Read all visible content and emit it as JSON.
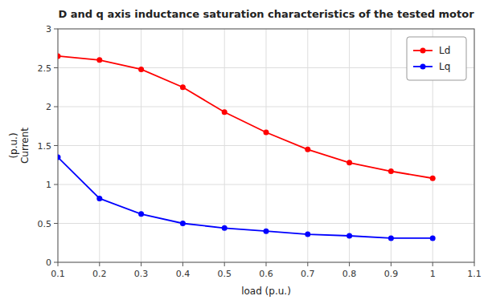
{
  "chart_data": {
    "type": "line",
    "title": "D and q axis inductance saturation characteristics of the tested motor",
    "xlabel": "load  (p.u.)",
    "ylabel": "(p.u.)\nCurrent",
    "x": [
      0.1,
      0.2,
      0.3,
      0.4,
      0.5,
      0.6,
      0.7,
      0.8,
      0.9,
      1.0
    ],
    "series": [
      {
        "name": "Ld",
        "color": "#ff0000",
        "marker": "circle",
        "values": [
          2.65,
          2.6,
          2.48,
          2.25,
          1.93,
          1.67,
          1.45,
          1.28,
          1.17,
          1.08
        ]
      },
      {
        "name": "Lq",
        "color": "#0000ff",
        "marker": "circle",
        "values": [
          1.35,
          0.82,
          0.62,
          0.5,
          0.44,
          0.4,
          0.36,
          0.34,
          0.31,
          0.31
        ]
      }
    ],
    "xlim": [
      0.1,
      1.1
    ],
    "ylim": [
      0,
      3.0
    ],
    "xticks": [
      0.1,
      0.2,
      0.3,
      0.4,
      0.5,
      0.6,
      0.7,
      0.8,
      0.9,
      1.0,
      1.1
    ],
    "yticks": [
      0,
      0.5,
      1.0,
      1.5,
      2.0,
      2.5,
      3.0
    ],
    "grid": true,
    "legend": "upper right"
  }
}
